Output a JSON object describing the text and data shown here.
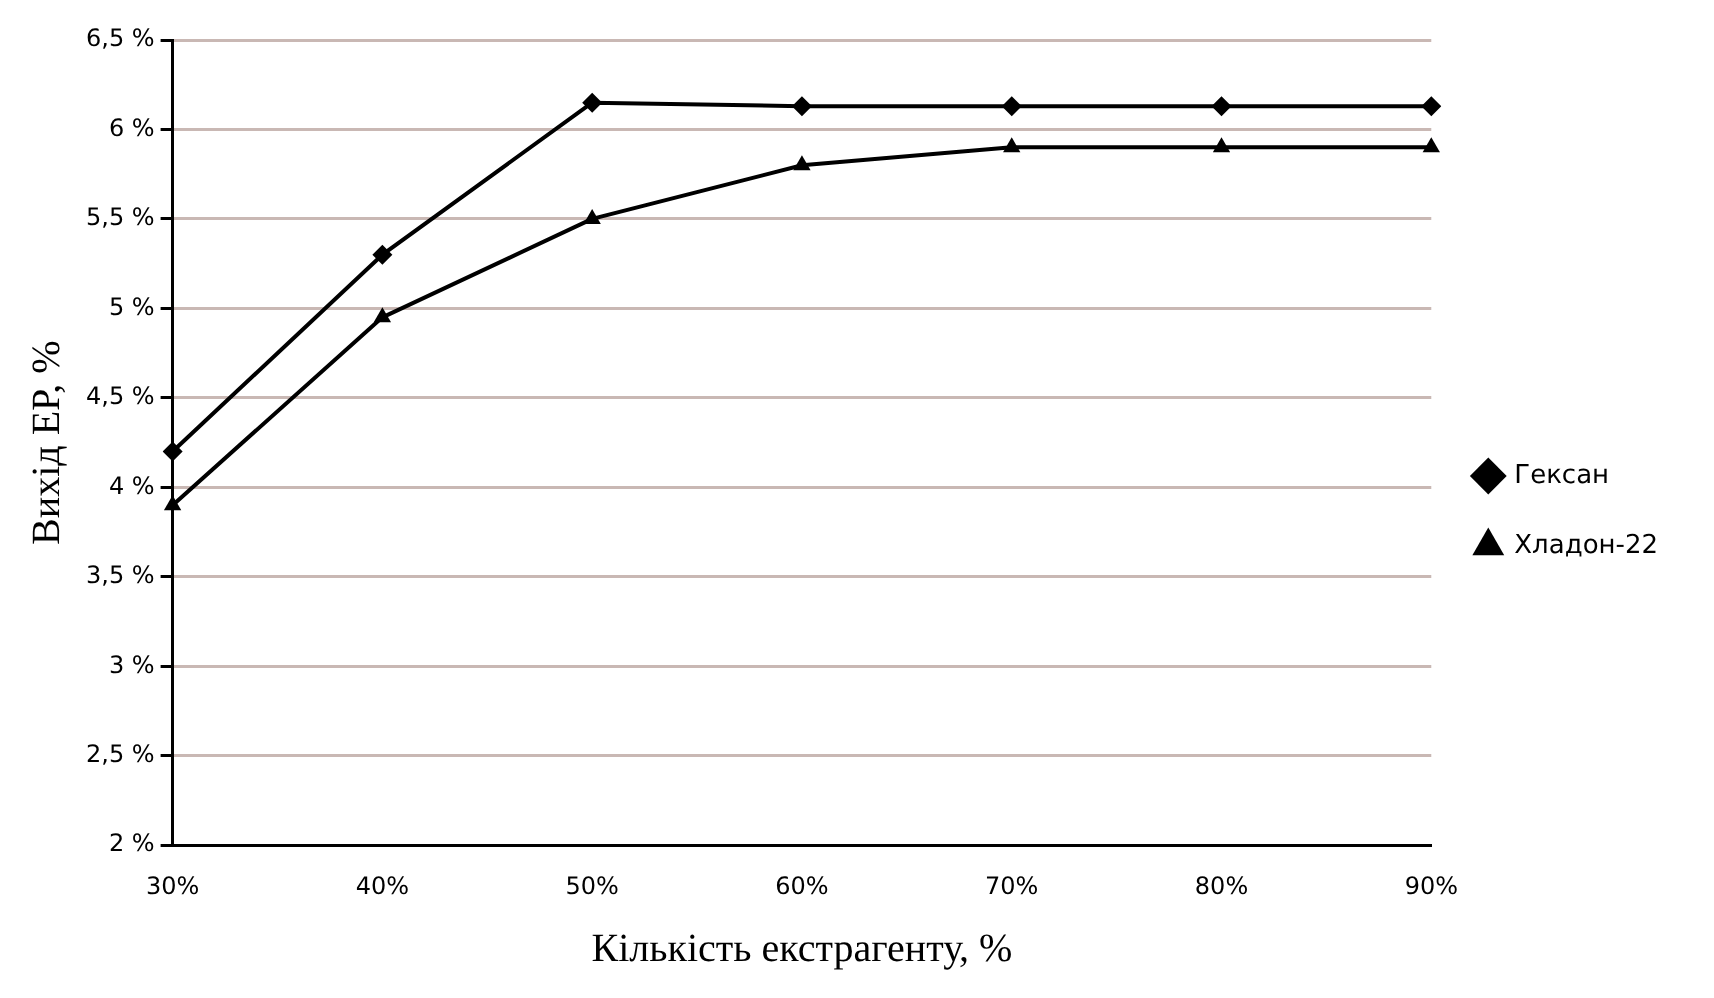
{
  "chart_data": {
    "type": "line",
    "xlabel": "Кількість екстрагенту, %",
    "ylabel": "Вихід ЕР, %",
    "categories": [
      "30%",
      "40%",
      "50%",
      "60%",
      "70%",
      "80%",
      "90%"
    ],
    "series": [
      {
        "name": "Гексан",
        "color": "#000000",
        "marker": "diamond",
        "values": [
          4.2,
          5.3,
          6.15,
          6.13,
          6.13,
          6.13,
          6.13
        ]
      },
      {
        "name": "Хладон-22",
        "color": "#000000",
        "marker": "triangle",
        "values": [
          3.9,
          4.95,
          5.5,
          5.8,
          5.9,
          5.9,
          5.9
        ]
      }
    ],
    "ylim": [
      2,
      6.5
    ],
    "yticks": [
      {
        "value": 2,
        "label": "2 %"
      },
      {
        "value": 2.5,
        "label": "2,5 %"
      },
      {
        "value": 3,
        "label": "3 %"
      },
      {
        "value": 3.5,
        "label": "3,5 %"
      },
      {
        "value": 4,
        "label": "4 %"
      },
      {
        "value": 4.5,
        "label": "4,5 %"
      },
      {
        "value": 5,
        "label": "5 %"
      },
      {
        "value": 5.5,
        "label": "5,5 %"
      },
      {
        "value": 6,
        "label": "6 %"
      },
      {
        "value": 6.5,
        "label": "6,5 %"
      }
    ],
    "grid": "y",
    "legend": "right",
    "line_style": "solid"
  }
}
